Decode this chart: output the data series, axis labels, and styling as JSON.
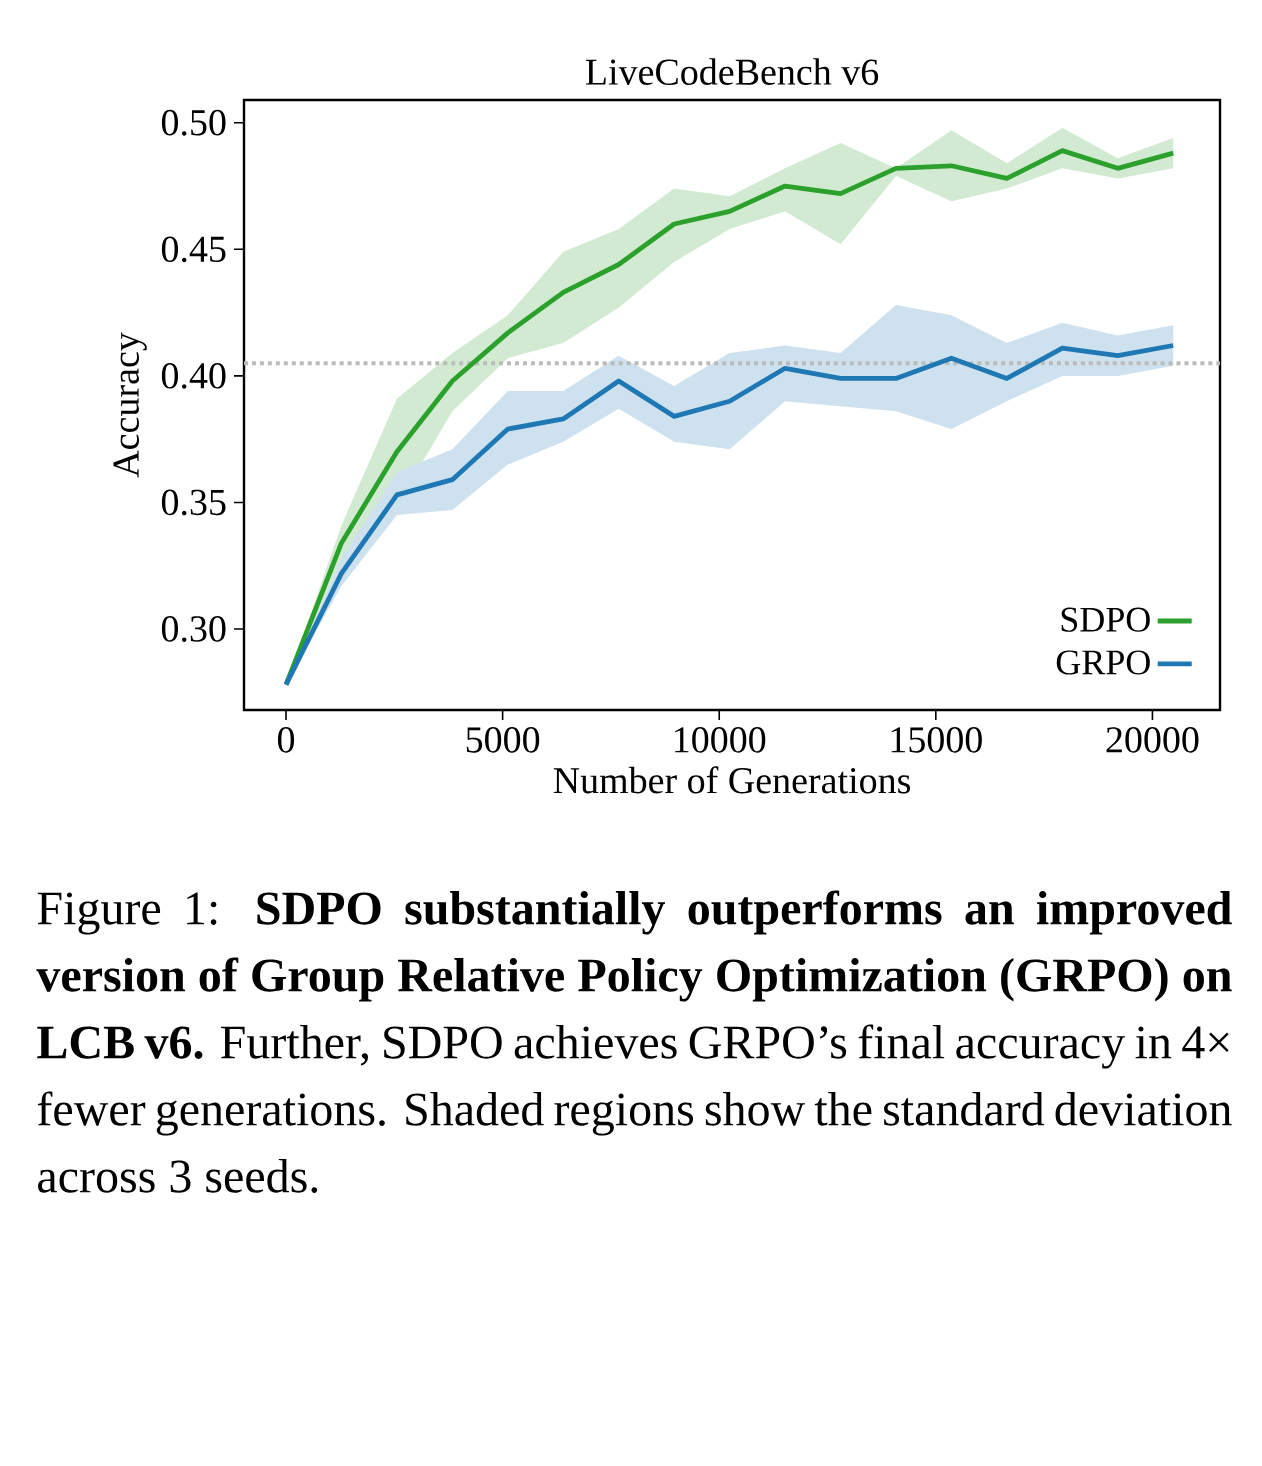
{
  "chart_data": {
    "type": "line",
    "title": "LiveCodeBench v6",
    "xlabel": "Number of Generations",
    "ylabel": "Accuracy",
    "x": [
      0,
      1280,
      2560,
      3840,
      5120,
      6400,
      7680,
      8960,
      10240,
      11520,
      12800,
      14080,
      15360,
      16640,
      17920,
      19200,
      20480
    ],
    "series": [
      {
        "name": "SDPO",
        "color": "#2ca02c",
        "values": [
          0.278,
          0.334,
          0.37,
          0.398,
          0.417,
          0.433,
          0.444,
          0.46,
          0.465,
          0.475,
          0.472,
          0.482,
          0.483,
          0.478,
          0.489,
          0.482,
          0.488
        ],
        "upper": [
          0.278,
          0.341,
          0.391,
          0.409,
          0.424,
          0.449,
          0.458,
          0.474,
          0.471,
          0.482,
          0.492,
          0.482,
          0.497,
          0.484,
          0.498,
          0.486,
          0.494
        ],
        "lower": [
          0.278,
          0.328,
          0.349,
          0.386,
          0.407,
          0.413,
          0.427,
          0.445,
          0.458,
          0.465,
          0.452,
          0.479,
          0.469,
          0.474,
          0.482,
          0.478,
          0.482
        ]
      },
      {
        "name": "GRPO",
        "color": "#1f77b4",
        "values": [
          0.278,
          0.322,
          0.353,
          0.359,
          0.379,
          0.383,
          0.398,
          0.384,
          0.39,
          0.403,
          0.399,
          0.399,
          0.407,
          0.399,
          0.411,
          0.408,
          0.412
        ],
        "upper": [
          0.278,
          0.328,
          0.362,
          0.371,
          0.394,
          0.394,
          0.408,
          0.396,
          0.409,
          0.412,
          0.409,
          0.428,
          0.424,
          0.413,
          0.421,
          0.416,
          0.42
        ],
        "lower": [
          0.278,
          0.317,
          0.345,
          0.347,
          0.365,
          0.374,
          0.387,
          0.374,
          0.371,
          0.39,
          0.388,
          0.386,
          0.379,
          0.39,
          0.4,
          0.4,
          0.404
        ]
      }
    ],
    "ref_lines": [
      {
        "axis": "y",
        "value": 0.405,
        "color": "#bbbbbb",
        "line_style": "dotted"
      }
    ],
    "xlim": [
      -970,
      21560
    ],
    "ylim": [
      0.268,
      0.509
    ],
    "xticks": [
      0,
      5000,
      10000,
      15000,
      20000
    ],
    "yticks": [
      {
        "value": 0.3,
        "label": "0.30"
      },
      {
        "value": 0.35,
        "label": "0.35"
      },
      {
        "value": 0.4,
        "label": "0.40"
      },
      {
        "value": 0.45,
        "label": "0.45"
      },
      {
        "value": 0.5,
        "label": "0.50"
      }
    ],
    "legend": "bottom right",
    "grid": false,
    "marker": "none",
    "line_style": "solid",
    "annotations": [
      "Figure 1: **SDPO substantially outperforms an improved version of Group Relative Policy Optimization (GRPO) on LCB v6.** Further, SDPO achieves GRPO’s final accuracy in 4× fewer generations. Shaded regions show the standard deviation across 3 seeds."
    ]
  }
}
